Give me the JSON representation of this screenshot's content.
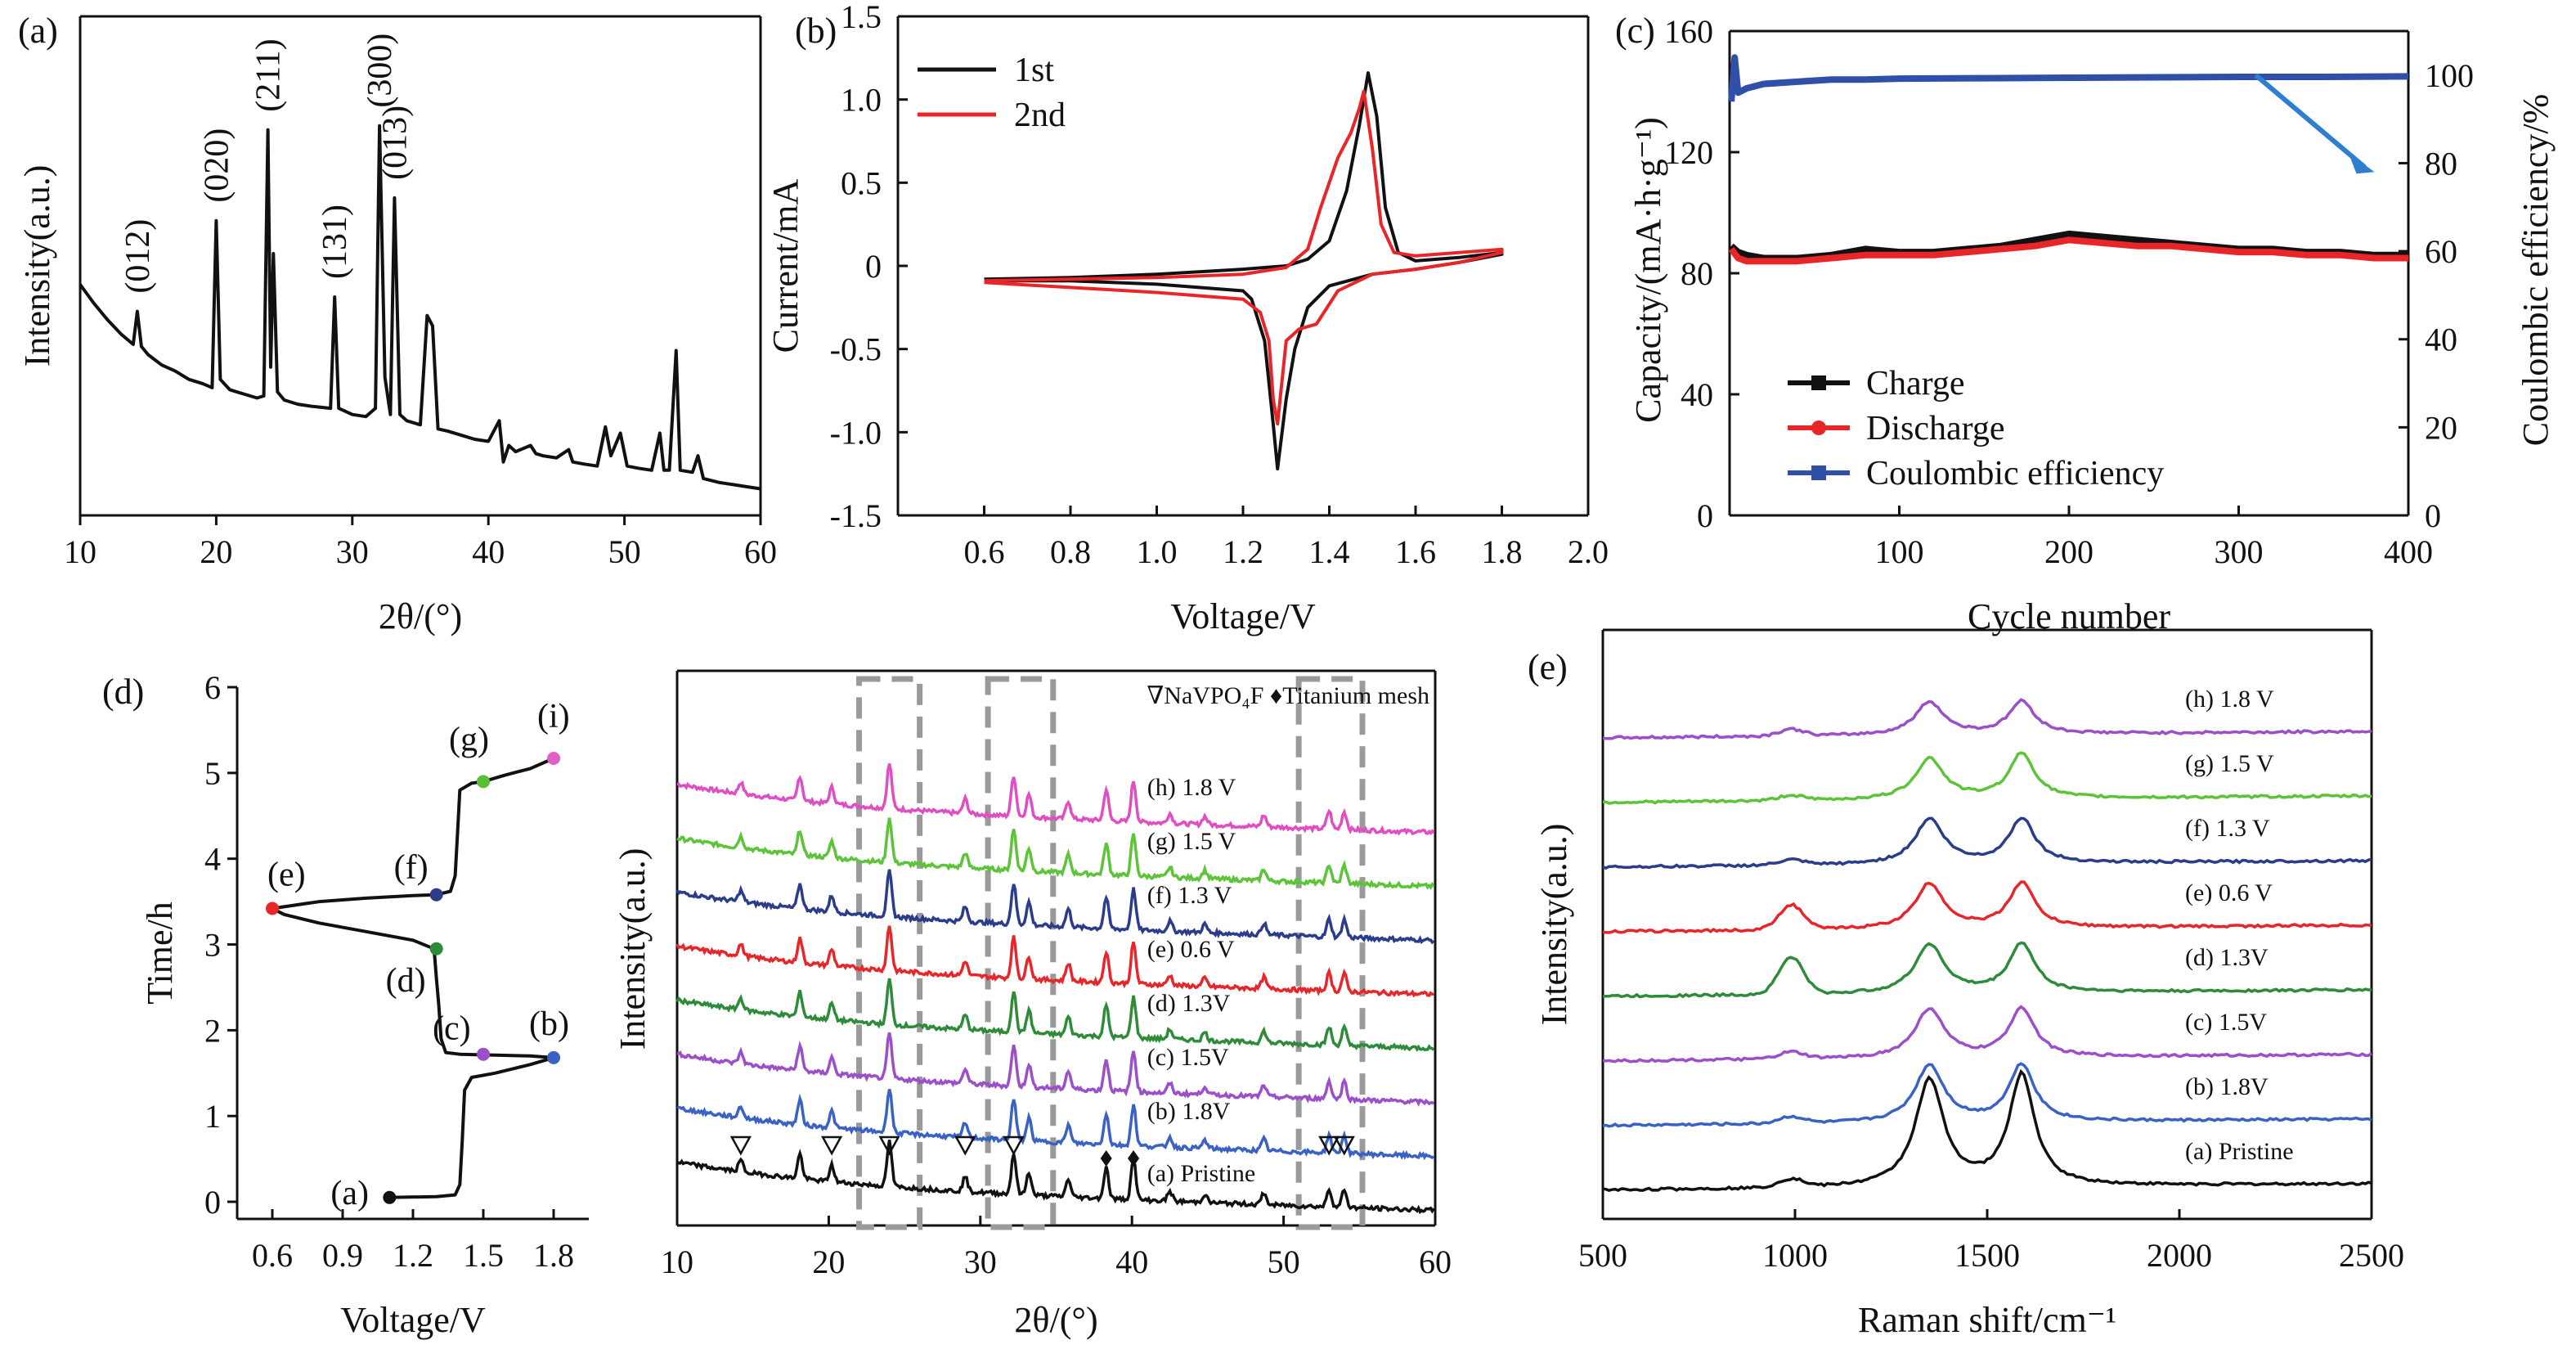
{
  "chart_data": [
    {
      "id": "a",
      "panel_label": "(a)",
      "type": "line",
      "xlabel": "2θ/(°)",
      "ylabel": "Intensity(a.u.)",
      "xlim": [
        10,
        60
      ],
      "xticks": [
        10,
        20,
        30,
        40,
        50,
        60
      ],
      "y_ticks_shown": false,
      "peak_labels": [
        {
          "text": "(012)",
          "x": 14.2
        },
        {
          "text": "(020)",
          "x": 20.0
        },
        {
          "text": "(211)",
          "x": 23.8
        },
        {
          "text": "(131)",
          "x": 28.7
        },
        {
          "text": "(300)",
          "x": 32.0
        },
        {
          "text": "(013)",
          "x": 33.1
        }
      ],
      "series": [
        {
          "color": "#111111",
          "x": [
            10,
            11,
            12,
            13,
            13.9,
            14.2,
            14.5,
            15,
            16,
            17,
            18,
            19,
            19.7,
            20.0,
            20.3,
            21,
            22,
            23,
            23.5,
            23.8,
            24.0,
            24.2,
            24.5,
            25,
            26,
            27,
            28.4,
            28.7,
            29.0,
            30,
            31,
            31.7,
            32.0,
            32.4,
            32.8,
            33.1,
            33.5,
            34,
            35,
            35.5,
            35.9,
            36.3,
            37,
            38,
            39,
            40,
            40.8,
            41.1,
            41.5,
            42,
            43.1,
            43.5,
            44,
            45,
            45.9,
            46.2,
            47,
            48,
            48.6,
            49,
            49.7,
            50.2,
            51,
            52,
            52.6,
            52.9,
            53.3,
            53.8,
            54.1,
            55,
            55.4,
            55.8,
            57,
            58,
            59,
            60
          ],
          "y": [
            100,
            91,
            83,
            76,
            71,
            87,
            70,
            66,
            61,
            58,
            54,
            52,
            50,
            131,
            54,
            49,
            47,
            45,
            46,
            175,
            60,
            115,
            48,
            44,
            42,
            41,
            40,
            94,
            40,
            37,
            36,
            40,
            177,
            55,
            37,
            142,
            37,
            34,
            32,
            85,
            80,
            30,
            29,
            27,
            25,
            24,
            34,
            14,
            22,
            19,
            22,
            18,
            17,
            16,
            20,
            14,
            13,
            12,
            31,
            17,
            28,
            12,
            11,
            10,
            28,
            10,
            10,
            68,
            10,
            9,
            17,
            6,
            4,
            3,
            2,
            1
          ]
        }
      ]
    },
    {
      "id": "b",
      "panel_label": "(b)",
      "type": "line",
      "xlabel": "Voltage/V",
      "ylabel": "Current/mA",
      "xlim": [
        0.4,
        2.0
      ],
      "ylim": [
        -1.5,
        1.5
      ],
      "xticks": [
        "0.6",
        "0.8",
        "1.0",
        "1.2",
        "1.4",
        "1.6",
        "1.8",
        "2.0"
      ],
      "yticks": [
        "-1.5",
        "-1.0",
        "-0.5",
        "0",
        "0.5",
        "1.0",
        "1.5"
      ],
      "legend_position": "top-left",
      "series": [
        {
          "name": "1st",
          "color": "#111111",
          "x": [
            0.6,
            0.8,
            1.0,
            1.2,
            1.3,
            1.35,
            1.4,
            1.44,
            1.47,
            1.49,
            1.51,
            1.53,
            1.56,
            1.6,
            1.7,
            1.8,
            1.8,
            1.7,
            1.6,
            1.5,
            1.4,
            1.35,
            1.32,
            1.3,
            1.28,
            1.27,
            1.25,
            1.22,
            1.2,
            1.0,
            0.8,
            0.6
          ],
          "y": [
            -0.08,
            -0.07,
            -0.05,
            -0.02,
            0.0,
            0.04,
            0.15,
            0.45,
            0.85,
            1.16,
            0.9,
            0.35,
            0.08,
            0.03,
            0.05,
            0.08,
            0.07,
            0.02,
            -0.02,
            -0.05,
            -0.12,
            -0.25,
            -0.5,
            -0.8,
            -1.22,
            -0.95,
            -0.45,
            -0.2,
            -0.15,
            -0.11,
            -0.09,
            -0.09
          ]
        },
        {
          "name": "2nd",
          "color": "#e8262a",
          "x": [
            0.6,
            0.8,
            1.0,
            1.2,
            1.3,
            1.35,
            1.38,
            1.42,
            1.45,
            1.47,
            1.48,
            1.5,
            1.52,
            1.55,
            1.6,
            1.7,
            1.8,
            1.8,
            1.7,
            1.6,
            1.5,
            1.42,
            1.37,
            1.33,
            1.3,
            1.29,
            1.28,
            1.27,
            1.26,
            1.24,
            1.2,
            1.0,
            0.8,
            0.6
          ],
          "y": [
            -0.09,
            -0.08,
            -0.07,
            -0.05,
            -0.01,
            0.1,
            0.35,
            0.65,
            0.8,
            0.95,
            1.05,
            0.7,
            0.25,
            0.08,
            0.06,
            0.08,
            0.1,
            0.08,
            0.02,
            -0.02,
            -0.05,
            -0.15,
            -0.35,
            -0.38,
            -0.45,
            -0.7,
            -0.95,
            -0.8,
            -0.45,
            -0.28,
            -0.2,
            -0.16,
            -0.13,
            -0.1
          ]
        }
      ]
    },
    {
      "id": "c",
      "panel_label": "(c)",
      "type": "line",
      "xlabel": "Cycle number",
      "ylabel": "Capacity/(mA·h·g⁻¹)",
      "ylabel_right": "Coulombic efficiency/%",
      "xlim": [
        0,
        400
      ],
      "ylim": [
        0,
        160
      ],
      "ylim_right": [
        0,
        110
      ],
      "xticks": [
        "100",
        "200",
        "300",
        "400"
      ],
      "yticks": [
        "0",
        "40",
        "80",
        "120",
        "160"
      ],
      "yticks_right": [
        "0",
        "20",
        "40",
        "60",
        "80",
        "100"
      ],
      "legend_position": "bottom-left",
      "arrow": {
        "description": "blue arrow from efficiency curve toward right axis",
        "from": [
          310,
          100
        ],
        "to": [
          380,
          78
        ]
      },
      "series": [
        {
          "name": "Charge",
          "color": "#111111",
          "marker": "square",
          "x": [
            1,
            5,
            10,
            20,
            40,
            60,
            80,
            100,
            120,
            140,
            160,
            180,
            200,
            220,
            240,
            260,
            280,
            300,
            320,
            340,
            360,
            380,
            400
          ],
          "y": [
            89,
            87,
            86,
            85,
            85,
            86,
            88,
            87,
            87,
            88,
            89,
            91,
            93,
            92,
            91,
            90,
            89,
            88,
            88,
            87,
            87,
            86,
            86
          ]
        },
        {
          "name": "Discharge",
          "color": "#e8262a",
          "marker": "circle",
          "x": [
            1,
            5,
            10,
            20,
            40,
            60,
            80,
            100,
            120,
            140,
            160,
            180,
            200,
            220,
            240,
            260,
            280,
            300,
            320,
            340,
            360,
            380,
            400
          ],
          "y": [
            88,
            85,
            84,
            84,
            84,
            85,
            86,
            86,
            86,
            87,
            88,
            89,
            91,
            90,
            89,
            89,
            88,
            87,
            87,
            86,
            86,
            85,
            85
          ]
        },
        {
          "name": "Coulombic efficiency",
          "color": "#2f4fa8",
          "marker": "square",
          "axis": "right",
          "x": [
            1,
            3,
            5,
            10,
            20,
            40,
            60,
            80,
            100,
            150,
            200,
            250,
            300,
            350,
            400
          ],
          "y": [
            94,
            104,
            96,
            97,
            98,
            98.5,
            99,
            99,
            99.2,
            99.3,
            99.4,
            99.5,
            99.6,
            99.6,
            99.7
          ]
        }
      ]
    },
    {
      "id": "d",
      "panel_label": "(d)",
      "type": "line",
      "xlabel": "Voltage/V",
      "ylabel": "Time/h",
      "xlim": [
        0.45,
        1.95
      ],
      "ylim": [
        -0.2,
        6
      ],
      "xticks": [
        "0.6",
        "0.9",
        "1.2",
        "1.5",
        "1.8"
      ],
      "yticks": [
        "0",
        "1",
        "2",
        "3",
        "4",
        "5",
        "6"
      ],
      "points": [
        {
          "label": "(a)",
          "x": 1.1,
          "y": 0.05,
          "color": "#111111"
        },
        {
          "label": "(b)",
          "x": 1.8,
          "y": 1.68,
          "color": "#3a62c4"
        },
        {
          "label": "(c)",
          "x": 1.5,
          "y": 1.72,
          "color": "#9b4fc8"
        },
        {
          "label": "(d)",
          "x": 1.3,
          "y": 2.95,
          "color": "#2e8b3a"
        },
        {
          "label": "(e)",
          "x": 0.6,
          "y": 3.42,
          "color": "#e8262a"
        },
        {
          "label": "(f)",
          "x": 1.3,
          "y": 3.58,
          "color": "#2b3c8c"
        },
        {
          "label": "(g)",
          "x": 1.5,
          "y": 4.9,
          "color": "#55c032"
        },
        {
          "label": "(i)",
          "x": 1.8,
          "y": 5.17,
          "color": "#e060c8"
        }
      ],
      "series": [
        {
          "color": "#111111",
          "x": [
            1.1,
            1.3,
            1.38,
            1.4,
            1.41,
            1.42,
            1.45,
            1.55,
            1.7,
            1.8,
            1.7,
            1.55,
            1.4,
            1.34,
            1.32,
            1.31,
            1.3,
            1.29,
            1.2,
            1.0,
            0.8,
            0.65,
            0.6,
            0.8,
            1.0,
            1.2,
            1.3,
            1.36,
            1.38,
            1.39,
            1.4,
            1.45,
            1.5,
            1.6,
            1.7,
            1.8
          ],
          "y": [
            0.05,
            0.06,
            0.08,
            0.2,
            0.7,
            1.3,
            1.45,
            1.5,
            1.6,
            1.68,
            1.7,
            1.71,
            1.72,
            1.74,
            1.9,
            2.3,
            2.6,
            2.95,
            3.05,
            3.15,
            3.25,
            3.35,
            3.42,
            3.5,
            3.54,
            3.57,
            3.58,
            3.62,
            3.8,
            4.3,
            4.8,
            4.88,
            4.9,
            4.98,
            5.05,
            5.17
          ]
        }
      ]
    },
    {
      "id": "d2",
      "type": "line",
      "xlabel": "2θ/(°)",
      "ylabel": "Intensity(a.u.)",
      "xlim": [
        10,
        60
      ],
      "xticks": [
        10,
        20,
        30,
        40,
        50,
        60
      ],
      "legend_text": "∇NaVPO₄F ♦Titanium mesh",
      "legend_position": "top-right",
      "highlight_boxes_2theta": [
        [
          22,
          26
        ],
        [
          30.5,
          34.8
        ],
        [
          51,
          55.2
        ]
      ],
      "triangle_markers_x": [
        14.2,
        20.2,
        24.0,
        29.0,
        32.2,
        53.0,
        54.0
      ],
      "diamond_markers_x": [
        38.3,
        40.1
      ],
      "peaks_2theta": [
        14.2,
        18.1,
        20.2,
        24.0,
        29.0,
        32.2,
        33.2,
        35.8,
        38.3,
        40.1,
        42.5,
        44.8,
        48.7,
        53.0,
        54.0
      ],
      "series": [
        {
          "label": "(h) 1.8 V",
          "color": "#e04ec4",
          "offset": 7
        },
        {
          "label": "(g) 1.5 V",
          "color": "#5cc438",
          "offset": 6
        },
        {
          "label": "(f) 1.3 V",
          "color": "#2b3c8c",
          "offset": 5
        },
        {
          "label": "(e) 0.6 V",
          "color": "#e8262a",
          "offset": 4
        },
        {
          "label": "(d) 1.3V",
          "color": "#2e8b3a",
          "offset": 3
        },
        {
          "label": "(c) 1.5V",
          "color": "#9b4fc8",
          "offset": 2
        },
        {
          "label": "(b) 1.8V",
          "color": "#3a62c4",
          "offset": 1
        },
        {
          "label": "(a) Pristine",
          "color": "#111111",
          "offset": 0
        }
      ]
    },
    {
      "id": "e",
      "panel_label": "(e)",
      "type": "line",
      "xlabel": "Raman shift/cm⁻¹",
      "ylabel": "Intensity(a.u.)",
      "xlim": [
        500,
        2500
      ],
      "xticks": [
        "500",
        "1000",
        "1500",
        "2000",
        "2500"
      ],
      "bands_cm": [
        1000,
        1350,
        1590
      ],
      "series": [
        {
          "label": "(h) 1.8 V",
          "color": "#9b4fc8",
          "offset": 7
        },
        {
          "label": "(g) 1.5 V",
          "color": "#5cc438",
          "offset": 6
        },
        {
          "label": "(f) 1.3 V",
          "color": "#2b3c8c",
          "offset": 5
        },
        {
          "label": "(e) 0.6 V",
          "color": "#e8262a",
          "offset": 4
        },
        {
          "label": "(d) 1.3V",
          "color": "#2e8b3a",
          "offset": 3
        },
        {
          "label": "(c) 1.5V",
          "color": "#9b4fc8",
          "offset": 2
        },
        {
          "label": "(b) 1.8V",
          "color": "#3a62c4",
          "offset": 1
        },
        {
          "label": "(a) Pristine",
          "color": "#111111",
          "offset": 0
        }
      ]
    }
  ]
}
